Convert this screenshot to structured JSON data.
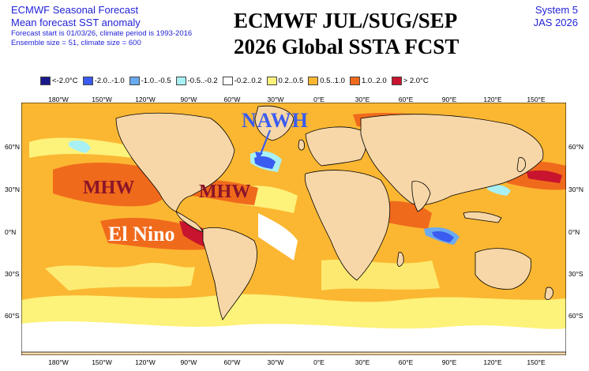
{
  "header": {
    "line1": "ECMWF Seasonal Forecast",
    "line2": "Mean forecast SST anomaly",
    "line3": "Forecast start is 01/03/26, climate period is 1993-2016",
    "line4": "Ensemble size = 51, climate size = 600",
    "title_line1": "ECMWF JUL/SUG/SEP",
    "title_line2": "2026 Global SSTA FCST",
    "system": "System 5",
    "period": "JAS 2026"
  },
  "legend": [
    {
      "label": "<-2.0°C",
      "color": "#1a1a8c"
    },
    {
      "label": "-2.0..-1.0",
      "color": "#3a5cf0"
    },
    {
      "label": "-1.0..-0.5",
      "color": "#6aaaf0"
    },
    {
      "label": "-0.5..-0.2",
      "color": "#a8f0f4"
    },
    {
      "label": "-0.2..0.2",
      "color": "#ffffff"
    },
    {
      "label": "0.2..0.5",
      "color": "#fdf27a"
    },
    {
      "label": "0.5..1.0",
      "color": "#fbb732"
    },
    {
      "label": "1.0..2.0",
      "color": "#f06a1c"
    },
    {
      "label": "> 2.0°C",
      "color": "#c8142e"
    }
  ],
  "longitudes": [
    "180°W",
    "150°W",
    "120°W",
    "90°W",
    "60°W",
    "30°W",
    "0°E",
    "30°E",
    "60°E",
    "90°E",
    "120°E",
    "150°E"
  ],
  "latitudes": [
    "60°N",
    "30°N",
    "0°N",
    "30°S",
    "60°S"
  ],
  "annotations": {
    "nawh": "NAWH",
    "mhw_pacific": "MHW",
    "mhw_atlantic": "MHW",
    "el_nino": "El Nino"
  },
  "colors": {
    "land": "#f7d7a8",
    "header_text": "#2323d8",
    "annot_red": "#8a1428",
    "annot_blue": "#3a5cf0"
  }
}
